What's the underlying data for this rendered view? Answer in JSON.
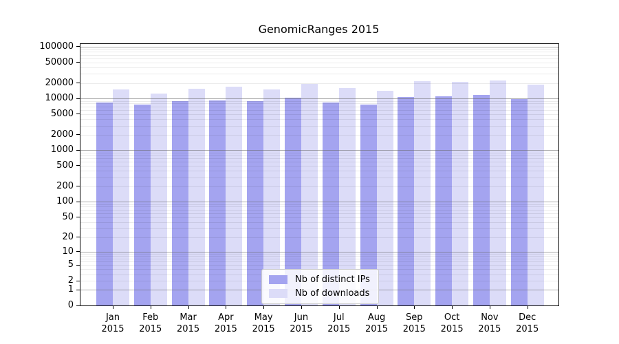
{
  "title": "GenomicRanges 2015",
  "chart_data": {
    "type": "bar",
    "title": "GenomicRanges 2015",
    "categories": [
      "Jan",
      "Feb",
      "Mar",
      "Apr",
      "May",
      "Jun",
      "Jul",
      "Aug",
      "Sep",
      "Oct",
      "Nov",
      "Dec"
    ],
    "year": "2015",
    "series": [
      {
        "name": "Nb of distinct IPs",
        "color": "#a4a4f0",
        "values": [
          8500,
          7600,
          8800,
          9200,
          9000,
          10300,
          8500,
          7700,
          10600,
          10900,
          11600,
          9900
        ]
      },
      {
        "name": "Nb of downloads",
        "color": "#dcdcf8",
        "values": [
          15000,
          12600,
          15400,
          16700,
          15100,
          18900,
          15700,
          14200,
          21400,
          21000,
          22500,
          18700
        ]
      }
    ],
    "y_ticks": [
      0,
      1,
      2,
      5,
      10,
      20,
      50,
      100,
      200,
      500,
      1000,
      2000,
      5000,
      10000,
      20000,
      50000,
      100000
    ],
    "yscale": "log10(1+v)",
    "ylim": [
      0,
      113000
    ],
    "grid": "horizontal; solid gray major lines at powers of 10 drawn over bars; faint minor lines at 2-9 multiples",
    "legend_position": "inside bottom-center"
  },
  "legend": {
    "items": [
      {
        "label": "Nb of distinct IPs"
      },
      {
        "label": "Nb of downloads"
      }
    ]
  }
}
